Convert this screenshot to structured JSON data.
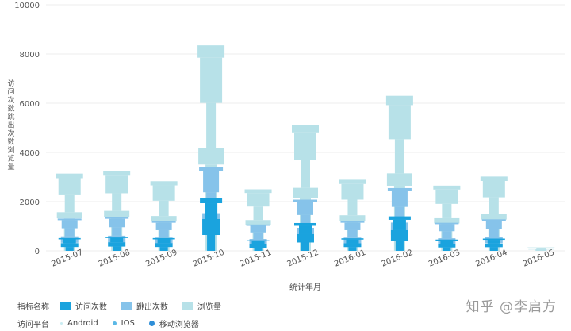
{
  "chart_data": {
    "type": "bar",
    "xlabel": "统计年月",
    "ylabel": "访问次数跳出次数浏览量",
    "ylim": [
      0,
      10000
    ],
    "yticks": [
      0,
      2000,
      4000,
      6000,
      8000,
      10000
    ],
    "categories": [
      "2015-07",
      "2015-08",
      "2015-09",
      "2015-10",
      "2015-11",
      "2015-12",
      "2016-01",
      "2016-02",
      "2016-03",
      "2016-04",
      "2016-05"
    ],
    "series": [
      {
        "name": "访问次数",
        "color": "#1aa3de",
        "values": [
          520,
          580,
          520,
          2150,
          430,
          1130,
          510,
          1400,
          460,
          500,
          0
        ]
      },
      {
        "name": "跳出次数",
        "color": "#86c3ea",
        "values": [
          1310,
          1370,
          1200,
          3400,
          1070,
          2080,
          1200,
          2550,
          1140,
          1280,
          0
        ]
      },
      {
        "name": "浏览量",
        "color": "#b7e1e8",
        "values": [
          3140,
          3250,
          2830,
          8350,
          2500,
          5120,
          2890,
          6300,
          2650,
          3020,
          140
        ]
      }
    ],
    "legend": {
      "metric_title": "指标名称",
      "platform_title": "访问平台",
      "platforms": [
        {
          "name": "Android",
          "color": "#c9ecf2",
          "size": 3
        },
        {
          "name": "IOS",
          "color": "#5bb8e6",
          "size": 5
        },
        {
          "name": "移动浏览器",
          "color": "#2f8fd8",
          "size": 7
        }
      ]
    }
  },
  "watermark": "知乎 @李启方"
}
